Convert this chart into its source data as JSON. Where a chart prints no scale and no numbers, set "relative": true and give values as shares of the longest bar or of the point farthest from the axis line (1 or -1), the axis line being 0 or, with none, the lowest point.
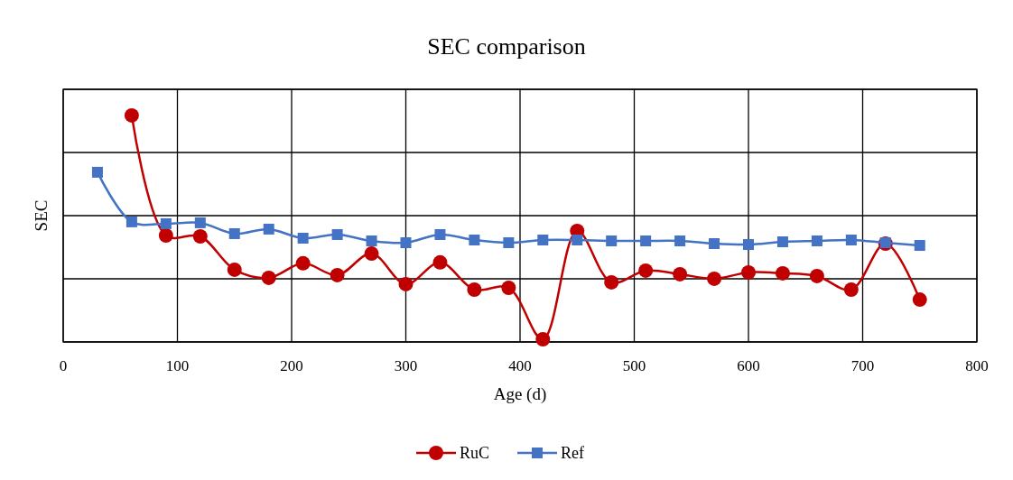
{
  "chart_data": {
    "type": "line",
    "title": "SEC comparison",
    "xlabel": "Age (d)",
    "ylabel": "SEC",
    "relative": true,
    "xlim": [
      0,
      800
    ],
    "xticks": [
      0,
      100,
      200,
      300,
      400,
      500,
      600,
      700,
      800
    ],
    "grid": true,
    "legend": "bottom",
    "line_style": "solid",
    "series": [
      {
        "name": "RuC",
        "color": "#c00000",
        "marker": "circle",
        "x": [
          60,
          90,
          120,
          150,
          180,
          210,
          240,
          270,
          300,
          330,
          360,
          390,
          420,
          450,
          480,
          510,
          540,
          570,
          600,
          630,
          660,
          690,
          720,
          750
        ],
        "values": [
          1,
          0.47,
          0.466,
          0.319,
          0.283,
          0.347,
          0.295,
          0.39,
          0.255,
          0.351,
          0.231,
          0.239,
          0.012,
          0.49,
          0.263,
          0.315,
          0.299,
          0.279,
          0.307,
          0.303,
          0.291,
          0.231,
          0.434,
          0.187
        ]
      },
      {
        "name": "Ref",
        "color": "#4472c4",
        "marker": "square",
        "x": [
          30,
          60,
          90,
          120,
          150,
          180,
          210,
          240,
          270,
          300,
          330,
          360,
          390,
          420,
          450,
          480,
          510,
          540,
          570,
          600,
          630,
          660,
          690,
          720,
          750
        ],
        "values": [
          0.749,
          0.53,
          0.522,
          0.526,
          0.478,
          0.498,
          0.458,
          0.474,
          0.446,
          0.438,
          0.474,
          0.45,
          0.438,
          0.45,
          0.45,
          0.446,
          0.446,
          0.446,
          0.434,
          0.43,
          0.442,
          0.446,
          0.45,
          0.438,
          0.426
        ]
      }
    ]
  }
}
